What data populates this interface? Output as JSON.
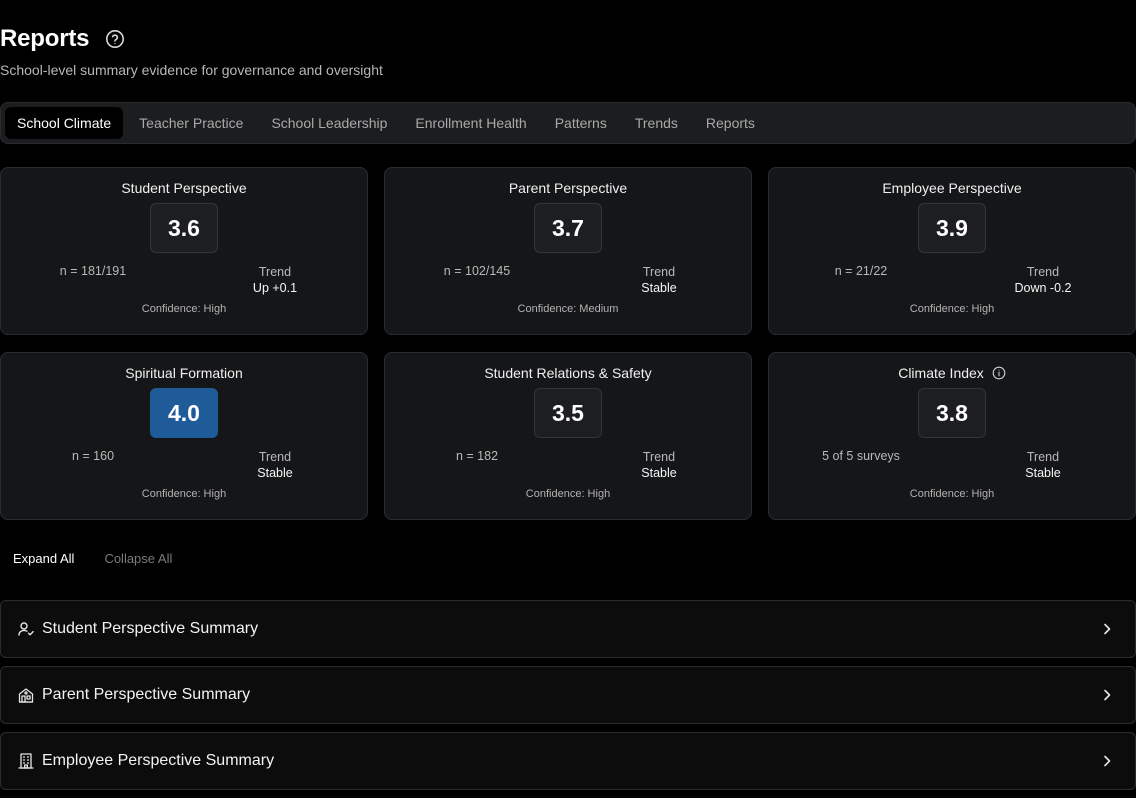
{
  "header": {
    "title": "Reports",
    "subtitle": "School-level summary evidence for governance and oversight"
  },
  "tabs": [
    {
      "label": "School Climate",
      "active": true
    },
    {
      "label": "Teacher Practice",
      "active": false
    },
    {
      "label": "School Leadership",
      "active": false
    },
    {
      "label": "Enrollment Health",
      "active": false
    },
    {
      "label": "Patterns",
      "active": false
    },
    {
      "label": "Trends",
      "active": false
    },
    {
      "label": "Reports",
      "active": false
    }
  ],
  "cards": [
    {
      "title": "Student Perspective",
      "score": "3.6",
      "left": "n = 181/191",
      "trend_label": "Trend",
      "trend_value": "Up +0.1",
      "confidence": "Confidence: High"
    },
    {
      "title": "Parent Perspective",
      "score": "3.7",
      "left": "n = 102/145",
      "trend_label": "Trend",
      "trend_value": "Stable",
      "confidence": "Confidence: Medium"
    },
    {
      "title": "Employee Perspective",
      "score": "3.9",
      "left": "n = 21/22",
      "trend_label": "Trend",
      "trend_value": "Down -0.2",
      "confidence": "Confidence: High"
    },
    {
      "title": "Spiritual Formation",
      "score": "4.0",
      "left": "n = 160",
      "trend_label": "Trend",
      "trend_value": "Stable",
      "confidence": "Confidence: High"
    },
    {
      "title": "Student Relations & Safety",
      "score": "3.5",
      "left": "n = 182",
      "trend_label": "Trend",
      "trend_value": "Stable",
      "confidence": "Confidence: High"
    },
    {
      "title": "Climate Index",
      "score": "3.8",
      "left": "5 of 5 surveys",
      "trend_label": "Trend",
      "trend_value": "Stable",
      "confidence": "Confidence: High"
    }
  ],
  "controls": {
    "expand_all": "Expand All",
    "collapse_all": "Collapse All"
  },
  "sections": [
    {
      "label": "Student Perspective Summary",
      "icon": "user-check-icon"
    },
    {
      "label": "Parent Perspective Summary",
      "icon": "home-icon"
    },
    {
      "label": "Employee Perspective Summary",
      "icon": "building-icon"
    }
  ],
  "colors": {
    "background": "#000000",
    "card": "#151618",
    "highlight_score": "#1f5a99"
  }
}
